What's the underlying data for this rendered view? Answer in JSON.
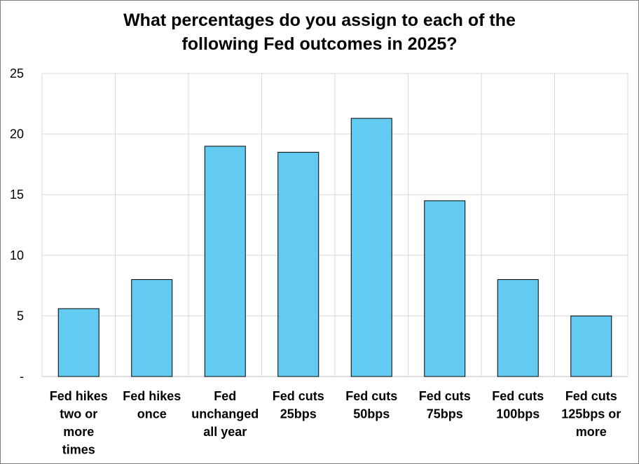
{
  "chart_data": {
    "type": "bar",
    "title_lines": [
      "What percentages do you assign to each of the",
      "following Fed outcomes in 2025?"
    ],
    "categories": [
      [
        "Fed hikes",
        "two or",
        "more",
        "times"
      ],
      [
        "Fed hikes",
        "once"
      ],
      [
        "Fed",
        "unchanged",
        "all year"
      ],
      [
        "Fed cuts",
        "25bps"
      ],
      [
        "Fed cuts",
        "50bps"
      ],
      [
        "Fed cuts",
        "75bps"
      ],
      [
        "Fed cuts",
        "100bps"
      ],
      [
        "Fed cuts",
        "125bps or",
        "more"
      ]
    ],
    "values": [
      5.6,
      8.0,
      19.0,
      18.5,
      21.3,
      14.5,
      8.0,
      5.0
    ],
    "ylim": [
      0,
      25
    ],
    "y_ticks": [
      0,
      5,
      10,
      15,
      20,
      25
    ],
    "y_tick_labels": [
      "-",
      "5",
      "10",
      "15",
      "20",
      "25"
    ],
    "xlabel": "",
    "ylabel": "",
    "grid": true,
    "legend": "none",
    "colors": {
      "bar_fill": "#63CBF2",
      "bar_stroke": "#000000",
      "grid": "#d9d9d9",
      "axis": "#bfbfbf"
    }
  }
}
